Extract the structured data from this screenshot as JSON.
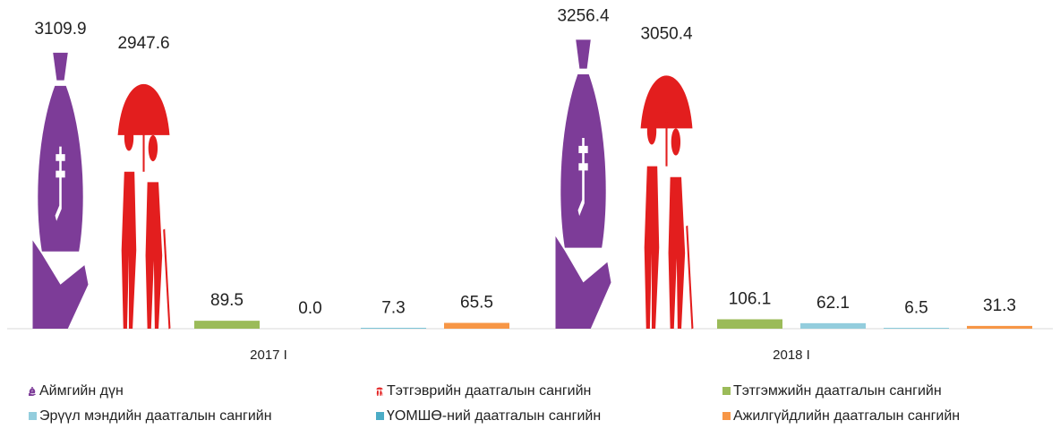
{
  "chart_data": {
    "type": "bar",
    "categories": [
      "2017 I",
      "2018 I"
    ],
    "series": [
      {
        "name": "Аймгийн дүн",
        "color": "#7d3c98",
        "marker": "bag",
        "values": [
          3109.9,
          3256.4
        ],
        "value_labels": [
          "3109.9",
          "3256.4"
        ]
      },
      {
        "name": "Тэтгэврийн даатгалын сангийн",
        "color": "#e31e1e",
        "marker": "umbrella",
        "values": [
          2947.6,
          3050.4
        ],
        "value_labels": [
          "2947.6",
          "3050.4"
        ]
      },
      {
        "name": "Тэтгэмжийн даатгалын сангийн",
        "color": "#9bbb59",
        "values": [
          89.5,
          106.1
        ],
        "value_labels": [
          "89.5",
          "106.1"
        ]
      },
      {
        "name": "Эрүүл мэндийн даатгалын сангийн",
        "color": "#93cddd",
        "values": [
          0,
          62.1
        ],
        "value_labels": [
          "0.0",
          "62.1"
        ]
      },
      {
        "name": "ҮОМШӨ-ний даатгалын сангийн",
        "color": "#4bacc6",
        "values": [
          7.3,
          6.5
        ],
        "value_labels": [
          "7.3",
          "6.5"
        ]
      },
      {
        "name": "Ажилгүйдлийн даатгалын сангийн",
        "color": "#f79646",
        "values": [
          65.5,
          31.3
        ],
        "value_labels": [
          "65.5",
          "31.3"
        ]
      }
    ],
    "ylim": [
      0,
      3300
    ]
  }
}
